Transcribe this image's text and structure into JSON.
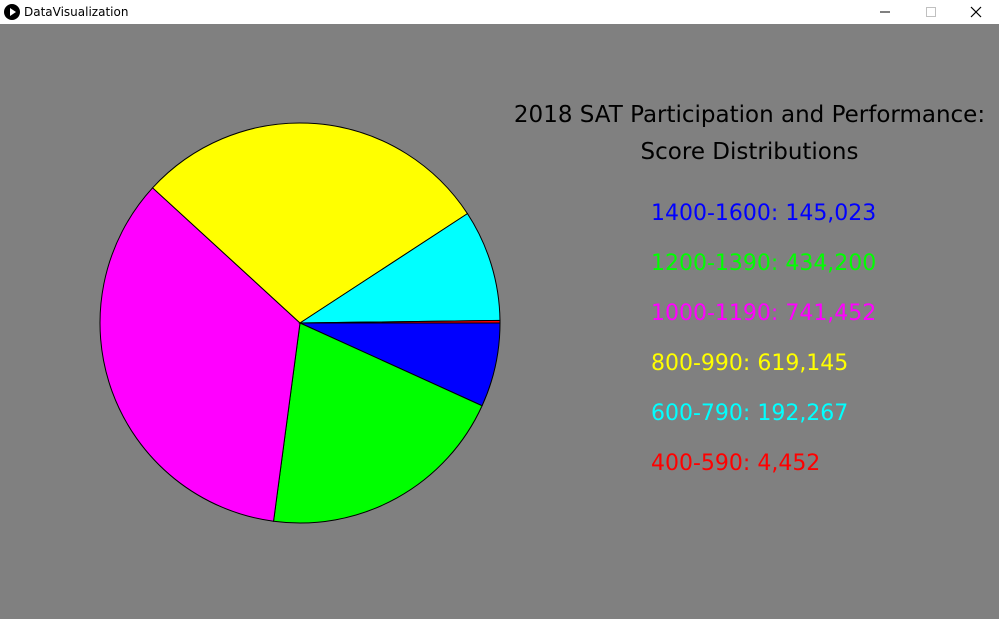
{
  "window": {
    "title": "DataVisualization"
  },
  "chart_data": {
    "type": "pie",
    "title": "2018 SAT Participation and Performance:",
    "subtitle": "Score Distributions",
    "categories": [
      "1400-1600",
      "1200-1390",
      "1000-1190",
      "800-990",
      "600-790",
      "400-590"
    ],
    "values": [
      145023,
      434200,
      741452,
      619145,
      192267,
      4452
    ],
    "value_labels": [
      "145,023",
      "434,200",
      "741,452",
      "619,145",
      "192,267",
      "4,452"
    ],
    "colors": [
      "#0000ff",
      "#00ff00",
      "#ff00ff",
      "#ffff00",
      "#00ffff",
      "#ff0000"
    ],
    "legend_position": "right"
  }
}
